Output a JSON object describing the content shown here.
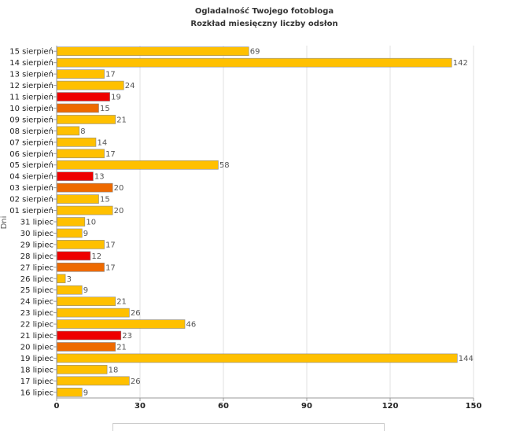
{
  "chart_data": {
    "type": "bar",
    "orientation": "horizontal",
    "title": "Ogladalność Twojego fotobloga",
    "subtitle": "Rozkład miesięczny liczby odsłon",
    "ylabel": "Dni",
    "xlabel": "",
    "xlim": [
      0,
      150
    ],
    "xticks": [
      0,
      30,
      60,
      90,
      120,
      150
    ],
    "grid": true,
    "categories": [
      "15 sierpień",
      "14 sierpień",
      "13 sierpień",
      "12 sierpień",
      "11 sierpień",
      "10 sierpień",
      "09 sierpień",
      "08 sierpień",
      "07 sierpień",
      "06 sierpień",
      "05 sierpień",
      "04 sierpień",
      "03 sierpień",
      "02 sierpień",
      "01 sierpień",
      "31 lipiec",
      "30 lipiec",
      "29 lipiec",
      "28 lipiec",
      "27 lipiec",
      "26 lipiec",
      "25 lipiec",
      "24 lipiec",
      "23 lipiec",
      "22 lipiec",
      "21 lipiec",
      "20 lipiec",
      "19 lipiec",
      "18 lipiec",
      "17 lipiec",
      "16 lipiec"
    ],
    "values": [
      69,
      142,
      17,
      24,
      19,
      15,
      21,
      8,
      14,
      17,
      58,
      13,
      20,
      15,
      20,
      10,
      9,
      17,
      12,
      17,
      3,
      9,
      21,
      26,
      46,
      23,
      21,
      144,
      18,
      26,
      9
    ],
    "bar_colors": [
      "#FFC000",
      "#FFC000",
      "#FFC000",
      "#FFC000",
      "#EE0000",
      "#EE6A00",
      "#FFC000",
      "#FFC000",
      "#FFC000",
      "#FFC000",
      "#FFC000",
      "#EE0000",
      "#EE6A00",
      "#FFC000",
      "#FFC000",
      "#FFC000",
      "#FFC000",
      "#FFC000",
      "#EE0000",
      "#EE6A00",
      "#FFC000",
      "#FFC000",
      "#FFC000",
      "#FFC000",
      "#FFC000",
      "#EE0000",
      "#EE6A00",
      "#FFC000",
      "#FFC000",
      "#FFC000",
      "#FFC000"
    ]
  }
}
